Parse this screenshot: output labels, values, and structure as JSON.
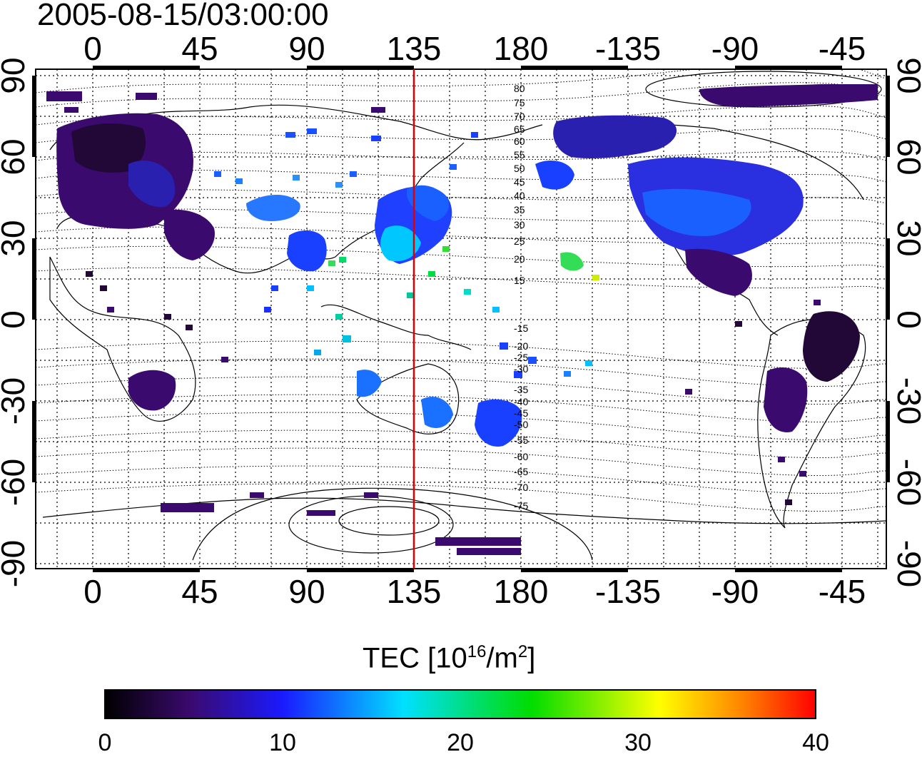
{
  "title": "2005-08-15/03:00:00",
  "map": {
    "lon_ticks": [
      "0",
      "45",
      "90",
      "135",
      "180",
      "-135",
      "-90",
      "-45"
    ],
    "lat_ticks": [
      "90",
      "60",
      "30",
      "0",
      "-30",
      "-60",
      "-90"
    ],
    "marker_longitude": 135,
    "magnetic_latitude_labels": [
      "80",
      "75",
      "70",
      "65",
      "60",
      "55",
      "50",
      "45",
      "40",
      "35",
      "30",
      "25",
      "20",
      "15",
      "-15",
      "-20",
      "-25",
      "-30",
      "-35",
      "-40",
      "-45",
      "-50",
      "-55",
      "-60",
      "-65",
      "-70",
      "-75"
    ],
    "grid": "dotted"
  },
  "colorbar": {
    "title_prefix": "TEC  [10",
    "title_exp1": "16",
    "title_mid": "/m",
    "title_exp2": "2",
    "title_suffix": "]",
    "min": 0,
    "max": 40,
    "ticks": [
      "0",
      "10",
      "20",
      "30",
      "40"
    ],
    "colors": [
      "#000000",
      "#3a0a6e",
      "#1a1aff",
      "#00e0ff",
      "#00dd00",
      "#ffff00",
      "#ff0000"
    ]
  }
}
